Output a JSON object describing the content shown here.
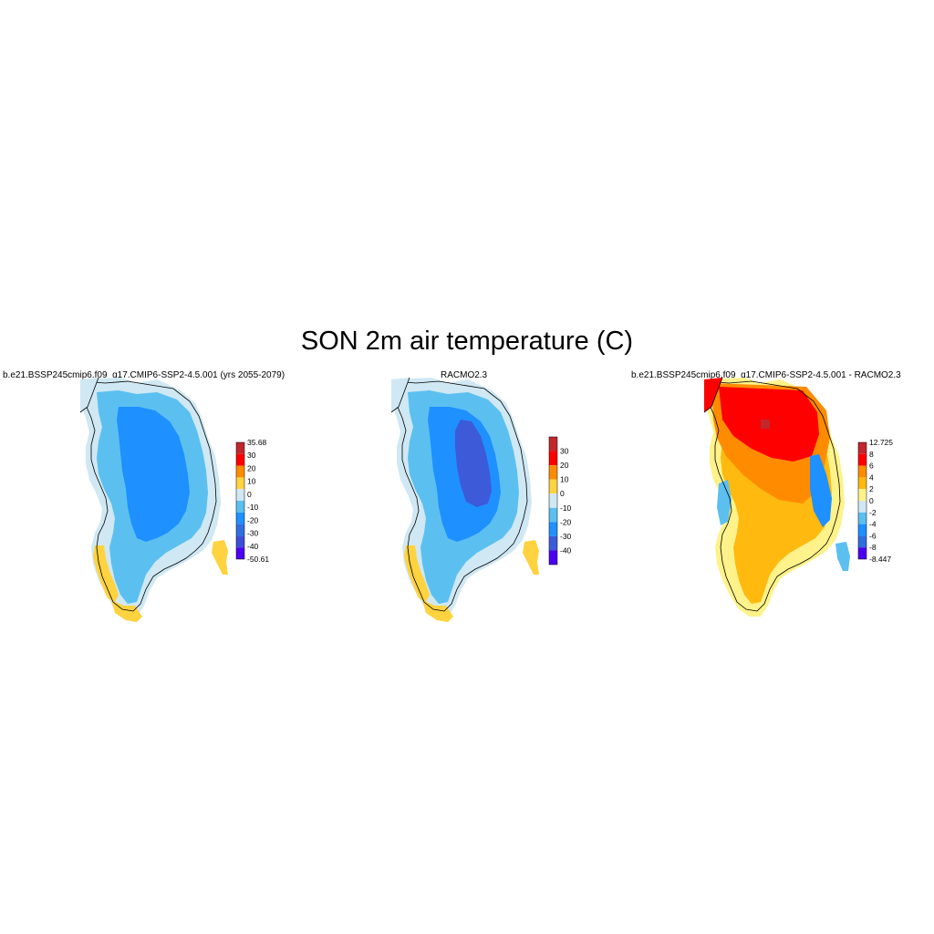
{
  "title": "SON 2m air temperature (C)",
  "panels": [
    {
      "title": "b.e21.BSSP245cmip6.f09_g17.CMIP6-SSP2-4.5.001 (yrs 2055-2079)",
      "colorbar": {
        "labels": [
          "35.68",
          "30",
          "20",
          "10",
          "0",
          "-10",
          "-20",
          "-30",
          "-40",
          "-50.61"
        ],
        "colors": [
          "#c1272d",
          "#ff0000",
          "#ff8c00",
          "#ffd23f",
          "#cfe8f3",
          "#5bc0f0",
          "#1e90ff",
          "#2f6fe0",
          "#3d4fd8",
          "#4b00f0"
        ]
      },
      "map": {
        "colors": {
          "core": "#1e90ff",
          "inland": "#5bc0f0",
          "edge": "#cfe8f3",
          "coast": "#ffd23f"
        }
      }
    },
    {
      "title": "RACMO2.3",
      "colorbar": {
        "labels": [
          "30",
          "20",
          "10",
          "0",
          "-10",
          "-20",
          "-30",
          "-40"
        ],
        "colors": [
          "#c1272d",
          "#ff0000",
          "#ff8c00",
          "#ffd23f",
          "#cfe8f3",
          "#5bc0f0",
          "#1e90ff",
          "#3d5ad8",
          "#4b00f0"
        ]
      },
      "map": {
        "colors": {
          "deep": "#3d5ad8",
          "core": "#1e90ff",
          "inland": "#5bc0f0",
          "edge": "#cfe8f3",
          "coast": "#ffd23f"
        }
      }
    },
    {
      "title": "b.e21.BSSP245cmip6.f09_g17.CMIP6-SSP2-4.5.001 - RACMO2.3",
      "colorbar": {
        "labels": [
          "12.725",
          "8",
          "6",
          "4",
          "2",
          "0",
          "-2",
          "-4",
          "-6",
          "-8",
          "-8.447"
        ],
        "colors": [
          "#c1272d",
          "#ff0000",
          "#ff8c00",
          "#ffb90f",
          "#fff28a",
          "#cfe8f3",
          "#5bc0f0",
          "#1e90ff",
          "#2f6fe0",
          "#4b00f0"
        ]
      },
      "map": {
        "colors": {
          "hot": "#ff0000",
          "warm": "#ff8c00",
          "mild": "#ffb90f",
          "light": "#fff28a",
          "cool": "#5bc0f0",
          "cold": "#1e90ff"
        }
      }
    }
  ]
}
